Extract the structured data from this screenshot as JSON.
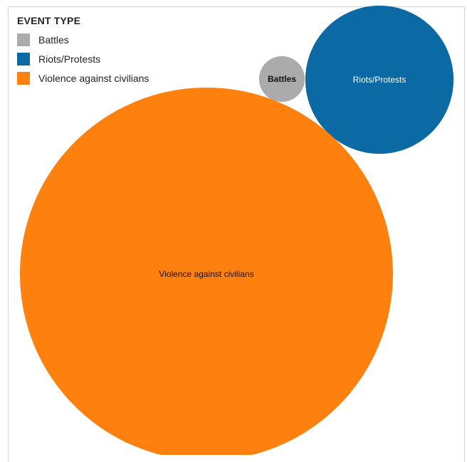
{
  "chart_data": {
    "type": "bubble",
    "legend": {
      "title": "EVENT TYPE",
      "placement": "top-left",
      "items": [
        {
          "label": "Battles",
          "color": "#ababab"
        },
        {
          "label": "Riots/Protests",
          "color": "#0b69a3"
        },
        {
          "label": "Violence against civilians",
          "color": "#fe800f"
        }
      ]
    },
    "bubbles": [
      {
        "label": "Battles",
        "value": 4,
        "color": "#ababab",
        "label_color": "#111111"
      },
      {
        "label": "Riots/Protests",
        "value": 42,
        "color": "#0b69a3",
        "label_color": "#ffffff"
      },
      {
        "label": "Violence against civilians",
        "value": 266,
        "color": "#fe800f",
        "label_color": "#111111"
      }
    ]
  }
}
